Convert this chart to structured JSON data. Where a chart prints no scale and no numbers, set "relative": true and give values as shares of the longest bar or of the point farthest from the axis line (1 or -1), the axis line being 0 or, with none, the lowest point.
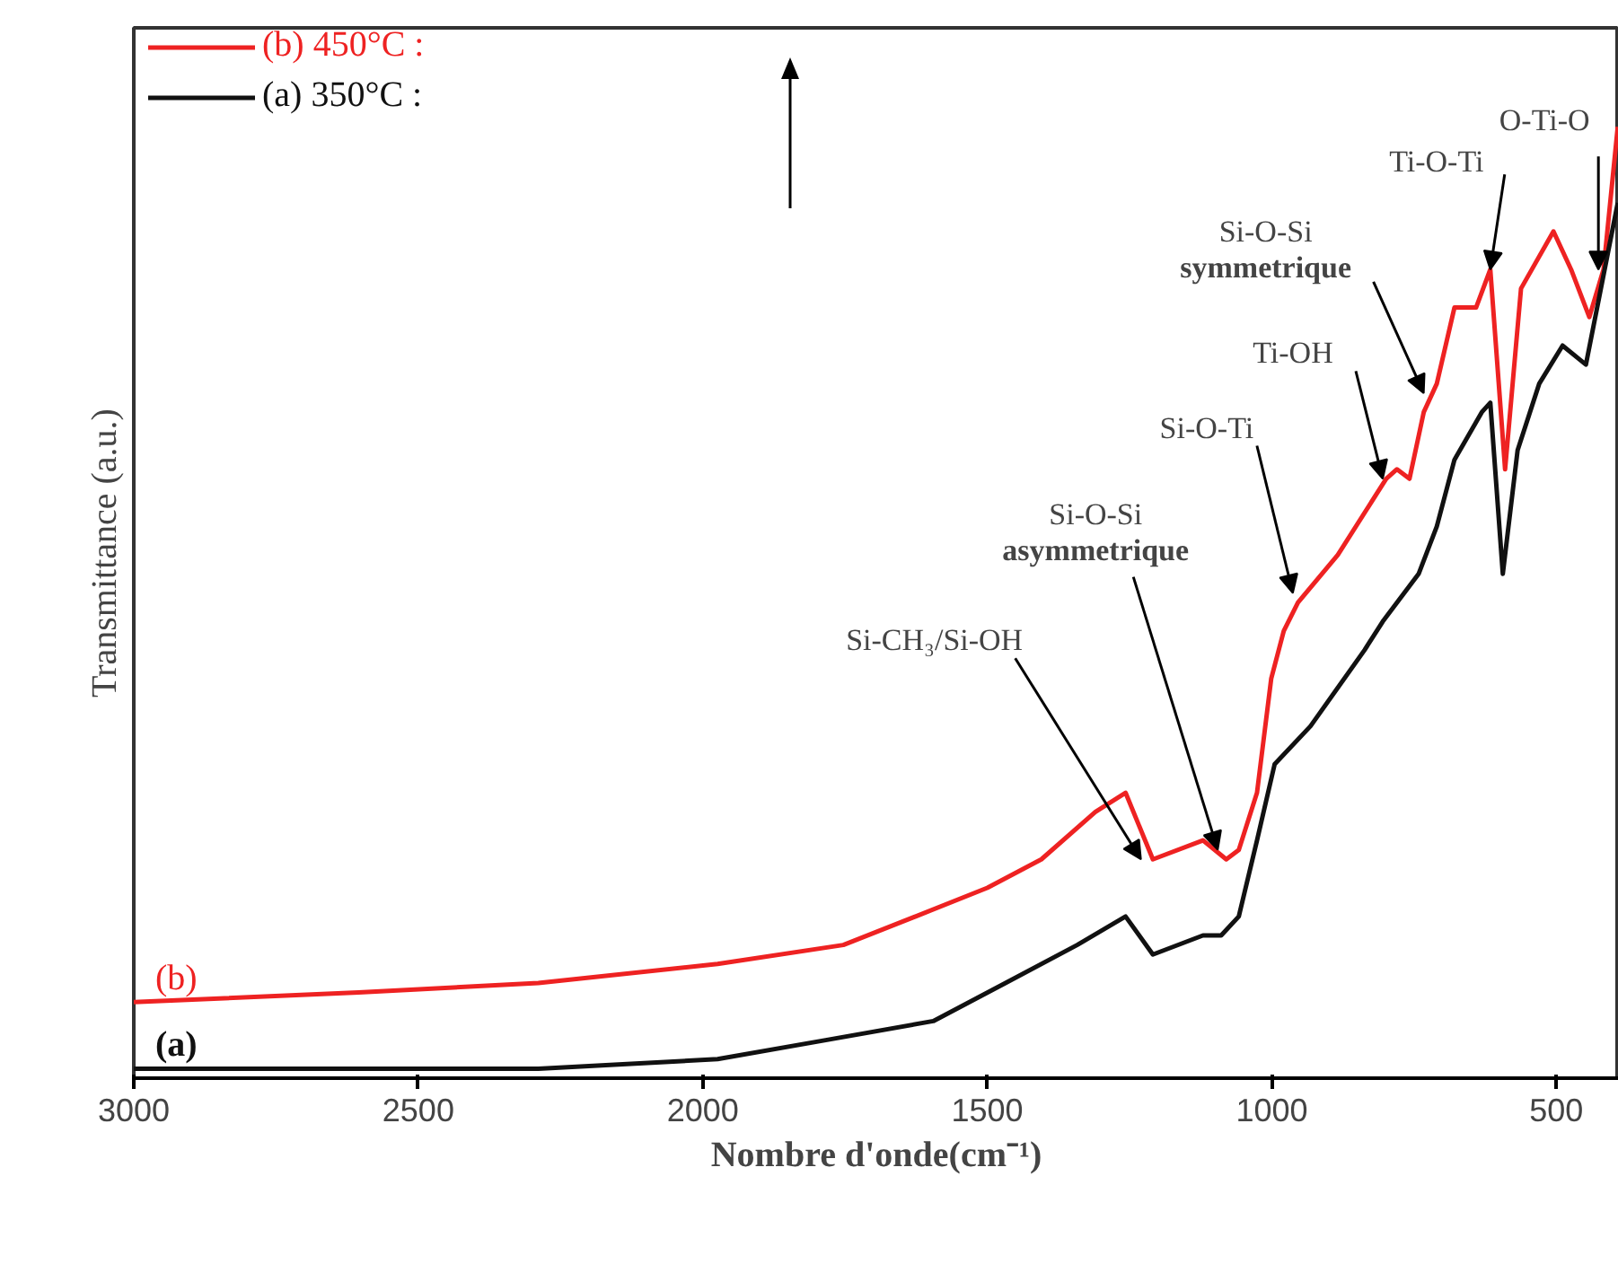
{
  "chart_data": {
    "type": "line",
    "xlabel": "Nombre d'onde(cm⁻¹)",
    "ylabel": "Transmittance (a.u.)",
    "relative": true,
    "xlim": [
      3000,
      390
    ],
    "xticks": [
      3000,
      2500,
      2000,
      1500,
      1000,
      500
    ],
    "grid": false,
    "legend": "top left",
    "marker": "none",
    "line_style": "solid",
    "series": [
      {
        "name": "(b) 450°C :",
        "color": "#ee2222",
        "x": [
          3000,
          2605,
          2289,
          1974,
          1753,
          1626,
          1500,
          1405,
          1310,
          1257,
          1209,
          1121,
          1080,
          1058,
          1026,
          1001,
          979,
          954,
          884,
          799,
          780,
          758,
          733,
          710,
          679,
          641,
          616,
          590,
          562,
          505,
          474,
          442,
          417,
          392
        ],
        "values": [
          0.08,
          0.09,
          0.1,
          0.12,
          0.14,
          0.17,
          0.2,
          0.23,
          0.28,
          0.3,
          0.23,
          0.25,
          0.23,
          0.24,
          0.3,
          0.42,
          0.47,
          0.5,
          0.55,
          0.63,
          0.64,
          0.63,
          0.7,
          0.73,
          0.81,
          0.81,
          0.85,
          0.64,
          0.83,
          0.89,
          0.85,
          0.8,
          0.85,
          1.0
        ]
      },
      {
        "name": "(a) 350°C :",
        "color": "#111111",
        "x": [
          3000,
          2289,
          1974,
          1784,
          1595,
          1468,
          1342,
          1257,
          1209,
          1121,
          1089,
          1058,
          1026,
          995,
          932,
          837,
          805,
          742,
          710,
          679,
          631,
          616,
          594,
          568,
          530,
          489,
          448,
          392
        ],
        "values": [
          0.01,
          0.01,
          0.02,
          0.04,
          0.06,
          0.1,
          0.14,
          0.17,
          0.13,
          0.15,
          0.15,
          0.17,
          0.25,
          0.33,
          0.37,
          0.45,
          0.48,
          0.53,
          0.58,
          0.65,
          0.7,
          0.71,
          0.53,
          0.66,
          0.73,
          0.77,
          0.75,
          0.92
        ]
      }
    ],
    "annotations": [
      {
        "text": "Si-CH₃/Si-OH",
        "x": 1230,
        "y": 0.23
      },
      {
        "text": "Si-O-Si\nasymmetrique",
        "x": 1095,
        "y": 0.24
      },
      {
        "text": "Si-O-Ti",
        "x": 963,
        "y": 0.51
      },
      {
        "text": "Ti-OH",
        "x": 805,
        "y": 0.63
      },
      {
        "text": "Si-O-Si\nsymmetrique",
        "x": 733,
        "y": 0.72
      },
      {
        "text": "Ti-O-Ti",
        "x": 616,
        "y": 0.85
      },
      {
        "text": "O-Ti-O",
        "x": 426,
        "y": 0.85
      },
      "(b)",
      "(a)"
    ]
  }
}
